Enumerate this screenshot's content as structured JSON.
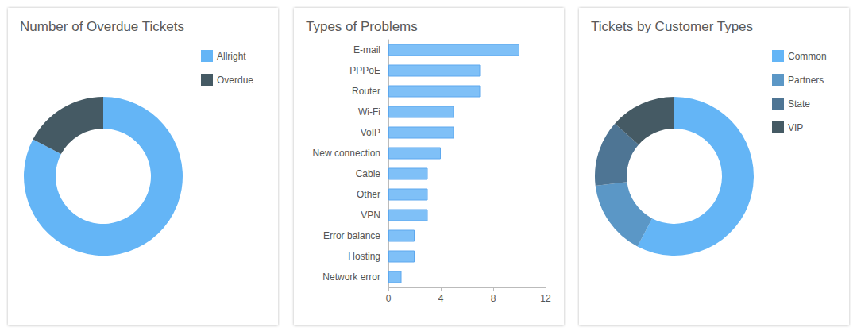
{
  "chart_data": [
    {
      "type": "pie",
      "title": "Number of Overdue Tickets",
      "categories": [
        "Allright",
        "Overdue"
      ],
      "values": [
        43,
        9
      ],
      "colors": [
        "#64b5f6",
        "#455a64"
      ],
      "legend": "top-right"
    },
    {
      "type": "bar",
      "title": "Types of Problems",
      "orientation": "horizontal",
      "categories": [
        "E-mail",
        "PPPoE",
        "Router",
        "Wi-Fi",
        "VoIP",
        "New connection",
        "Cable",
        "Other",
        "VPN",
        "Error balance",
        "Hosting",
        "Network error"
      ],
      "values": [
        10,
        7,
        7,
        5,
        5,
        4,
        3,
        3,
        3,
        2,
        2,
        1
      ],
      "color": "#7fc0f7",
      "xlim": [
        0,
        12
      ],
      "xticks": [
        0,
        4,
        8,
        12
      ],
      "grid": false
    },
    {
      "type": "pie",
      "title": "Tickets by Customer Types",
      "categories": [
        "Common",
        "Partners",
        "State",
        "VIP"
      ],
      "values": [
        30,
        8,
        7,
        7
      ],
      "colors": [
        "#64b5f6",
        "#5b97c6",
        "#4e7594",
        "#455a64"
      ],
      "legend": "top-right"
    }
  ]
}
